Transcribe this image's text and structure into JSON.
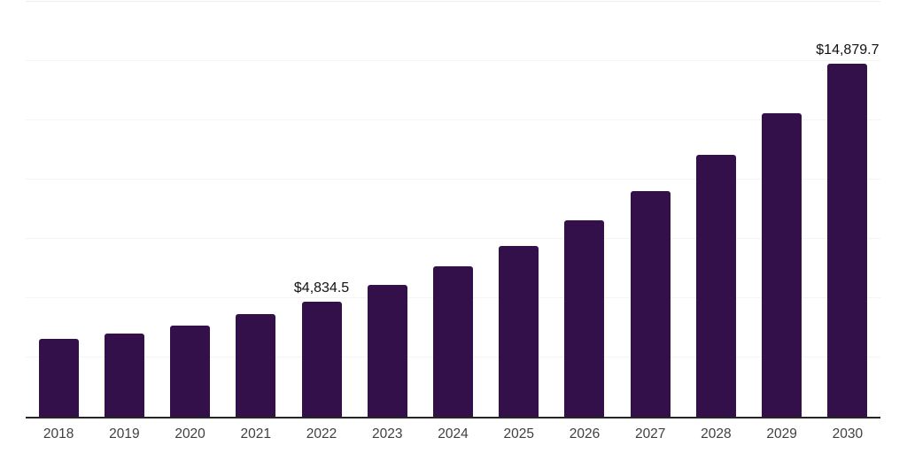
{
  "chart_data": {
    "type": "bar",
    "title": "",
    "xlabel": "",
    "ylabel": "",
    "categories": [
      "2018",
      "2019",
      "2020",
      "2021",
      "2022",
      "2023",
      "2024",
      "2025",
      "2026",
      "2027",
      "2028",
      "2029",
      "2030"
    ],
    "values": [
      3275,
      3500,
      3835,
      4320,
      4834.5,
      5545,
      6330,
      7220,
      8300,
      9530,
      11055,
      12805,
      14879.7
    ],
    "data_labels": [
      {
        "category": "2022",
        "text": "$4,834.5"
      },
      {
        "category": "2030",
        "text": "$14,879.7"
      }
    ],
    "ylim": [
      0,
      17500
    ],
    "gridline_interval": 2500,
    "grid": true,
    "legend": false,
    "y_axis_labels_visible": false,
    "bar_color": "#33104a",
    "axis_line_color": "#262626",
    "gridline_color": "#f4f4f6",
    "top_border_color": "#eeeef2",
    "tick_label_color": "#404040",
    "data_label_color": "#111111"
  }
}
